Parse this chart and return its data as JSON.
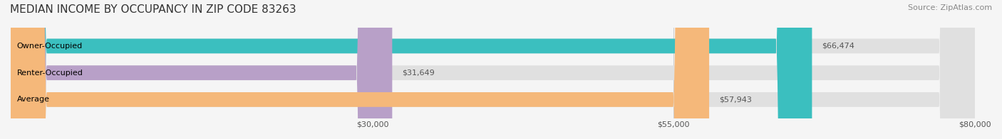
{
  "title": "MEDIAN INCOME BY OCCUPANCY IN ZIP CODE 83263",
  "source": "Source: ZipAtlas.com",
  "categories": [
    "Owner-Occupied",
    "Renter-Occupied",
    "Average"
  ],
  "values": [
    66474,
    31649,
    57943
  ],
  "bar_colors": [
    "#3bbfbf",
    "#b8a0c8",
    "#f5b87a"
  ],
  "bar_labels": [
    "$66,474",
    "$31,649",
    "$57,943"
  ],
  "xlim": [
    0,
    80000
  ],
  "xticks": [
    0,
    30000,
    55000,
    80000
  ],
  "xtick_labels": [
    "",
    "$30,000",
    "$55,000",
    "$80,000"
  ],
  "background_color": "#f0f0f0",
  "bar_bg_color": "#e8e8e8",
  "title_fontsize": 11,
  "source_fontsize": 8,
  "label_fontsize": 8,
  "tick_fontsize": 8,
  "bar_height": 0.55
}
